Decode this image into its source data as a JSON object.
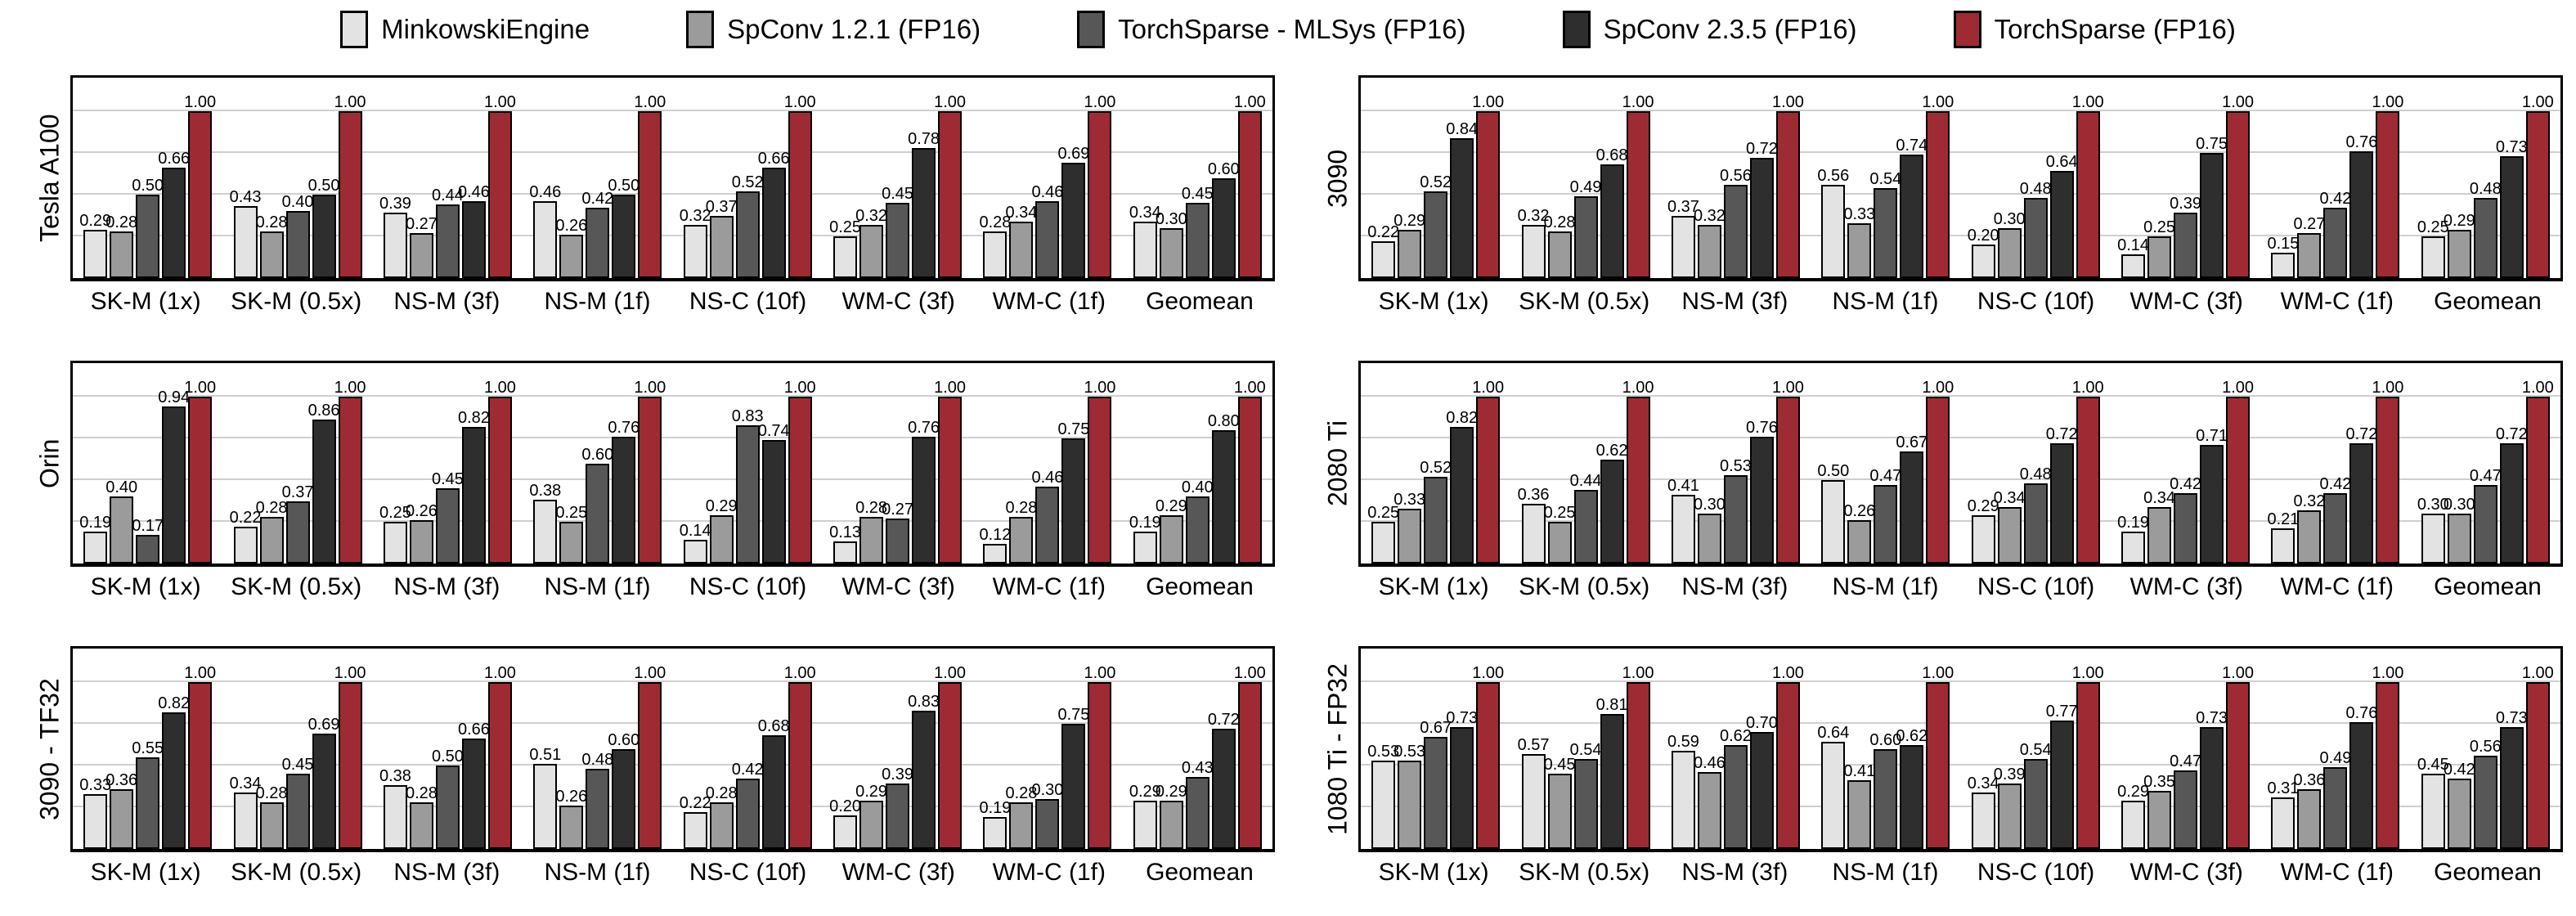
{
  "legend": {
    "items": [
      {
        "label": "MinkowskiEngine",
        "color": "#e3e3e3"
      },
      {
        "label": "SpConv 1.2.1 (FP16)",
        "color": "#9b9b9b"
      },
      {
        "label": "TorchSparse - MLSys (FP16)",
        "color": "#575757"
      },
      {
        "label": "SpConv 2.3.5 (FP16)",
        "color": "#2e2e2e"
      },
      {
        "label": "TorchSparse (FP16)",
        "color": "#9e2b33"
      }
    ]
  },
  "axis": {
    "ylim": [
      0,
      1.2
    ],
    "gridlines": [
      0.25,
      0.5,
      0.75,
      1.0
    ],
    "grid_color": "#cfcfcf",
    "bar_border_color": "#000000",
    "value_label_format": "2-decimals"
  },
  "chart_data": [
    {
      "type": "bar",
      "title": "Tesla A100",
      "categories": [
        "SK-M (1x)",
        "SK-M (0.5x)",
        "NS-M (3f)",
        "NS-M (1f)",
        "NS-C (10f)",
        "WM-C (3f)",
        "WM-C (1f)",
        "Geomean"
      ],
      "series": [
        {
          "name": "MinkowskiEngine",
          "values": [
            0.29,
            0.43,
            0.39,
            0.46,
            0.32,
            0.25,
            0.28,
            0.34
          ]
        },
        {
          "name": "SpConv 1.2.1 (FP16)",
          "values": [
            0.28,
            0.28,
            0.27,
            0.26,
            0.37,
            0.32,
            0.34,
            0.3
          ]
        },
        {
          "name": "TorchSparse - MLSys (FP16)",
          "values": [
            0.5,
            0.4,
            0.44,
            0.42,
            0.52,
            0.45,
            0.46,
            0.45
          ]
        },
        {
          "name": "SpConv 2.3.5 (FP16)",
          "values": [
            0.66,
            0.5,
            0.46,
            0.5,
            0.66,
            0.78,
            0.69,
            0.6
          ]
        },
        {
          "name": "TorchSparse (FP16)",
          "values": [
            1.0,
            1.0,
            1.0,
            1.0,
            1.0,
            1.0,
            1.0,
            1.0
          ]
        }
      ],
      "ylim": [
        0,
        1.2
      ],
      "grid": "horizontal",
      "legend_position": "top-shared"
    },
    {
      "type": "bar",
      "title": "3090",
      "categories": [
        "SK-M (1x)",
        "SK-M (0.5x)",
        "NS-M (3f)",
        "NS-M (1f)",
        "NS-C (10f)",
        "WM-C (3f)",
        "WM-C (1f)",
        "Geomean"
      ],
      "series": [
        {
          "name": "MinkowskiEngine",
          "values": [
            0.22,
            0.32,
            0.37,
            0.56,
            0.2,
            0.14,
            0.15,
            0.25
          ]
        },
        {
          "name": "SpConv 1.2.1 (FP16)",
          "values": [
            0.29,
            0.28,
            0.32,
            0.33,
            0.3,
            0.25,
            0.27,
            0.29
          ]
        },
        {
          "name": "TorchSparse - MLSys (FP16)",
          "values": [
            0.52,
            0.49,
            0.56,
            0.54,
            0.48,
            0.39,
            0.42,
            0.48
          ]
        },
        {
          "name": "SpConv 2.3.5 (FP16)",
          "values": [
            0.84,
            0.68,
            0.72,
            0.74,
            0.64,
            0.75,
            0.76,
            0.73
          ]
        },
        {
          "name": "TorchSparse (FP16)",
          "values": [
            1.0,
            1.0,
            1.0,
            1.0,
            1.0,
            1.0,
            1.0,
            1.0
          ]
        }
      ],
      "ylim": [
        0,
        1.2
      ],
      "grid": "horizontal",
      "legend_position": "top-shared"
    },
    {
      "type": "bar",
      "title": "Orin",
      "categories": [
        "SK-M (1x)",
        "SK-M (0.5x)",
        "NS-M (3f)",
        "NS-M (1f)",
        "NS-C (10f)",
        "WM-C (3f)",
        "WM-C (1f)",
        "Geomean"
      ],
      "series": [
        {
          "name": "MinkowskiEngine",
          "values": [
            0.19,
            0.22,
            0.25,
            0.38,
            0.14,
            0.13,
            0.12,
            0.19
          ]
        },
        {
          "name": "SpConv 1.2.1 (FP16)",
          "values": [
            0.4,
            0.28,
            0.26,
            0.25,
            0.29,
            0.28,
            0.28,
            0.29
          ]
        },
        {
          "name": "TorchSparse - MLSys (FP16)",
          "values": [
            0.17,
            0.37,
            0.45,
            0.6,
            0.83,
            0.27,
            0.46,
            0.4
          ]
        },
        {
          "name": "SpConv 2.3.5 (FP16)",
          "values": [
            0.94,
            0.86,
            0.82,
            0.76,
            0.74,
            0.76,
            0.75,
            0.8
          ]
        },
        {
          "name": "TorchSparse (FP16)",
          "values": [
            1.0,
            1.0,
            1.0,
            1.0,
            1.0,
            1.0,
            1.0,
            1.0
          ]
        }
      ],
      "ylim": [
        0,
        1.2
      ],
      "grid": "horizontal",
      "legend_position": "top-shared"
    },
    {
      "type": "bar",
      "title": "2080 Ti",
      "categories": [
        "SK-M (1x)",
        "SK-M (0.5x)",
        "NS-M (3f)",
        "NS-M (1f)",
        "NS-C (10f)",
        "WM-C (3f)",
        "WM-C (1f)",
        "Geomean"
      ],
      "series": [
        {
          "name": "MinkowskiEngine",
          "values": [
            0.25,
            0.36,
            0.41,
            0.5,
            0.29,
            0.19,
            0.21,
            0.3
          ]
        },
        {
          "name": "SpConv 1.2.1 (FP16)",
          "values": [
            0.33,
            0.25,
            0.3,
            0.26,
            0.34,
            0.34,
            0.32,
            0.3
          ]
        },
        {
          "name": "TorchSparse - MLSys (FP16)",
          "values": [
            0.52,
            0.44,
            0.53,
            0.47,
            0.48,
            0.42,
            0.42,
            0.47
          ]
        },
        {
          "name": "SpConv 2.3.5 (FP16)",
          "values": [
            0.82,
            0.62,
            0.76,
            0.67,
            0.72,
            0.71,
            0.72,
            0.72
          ]
        },
        {
          "name": "TorchSparse (FP16)",
          "values": [
            1.0,
            1.0,
            1.0,
            1.0,
            1.0,
            1.0,
            1.0,
            1.0
          ]
        }
      ],
      "ylim": [
        0,
        1.2
      ],
      "grid": "horizontal",
      "legend_position": "top-shared"
    },
    {
      "type": "bar",
      "title": "3090 - TF32",
      "categories": [
        "SK-M (1x)",
        "SK-M (0.5x)",
        "NS-M (3f)",
        "NS-M (1f)",
        "NS-C (10f)",
        "WM-C (3f)",
        "WM-C (1f)",
        "Geomean"
      ],
      "series": [
        {
          "name": "MinkowskiEngine",
          "values": [
            0.33,
            0.34,
            0.38,
            0.51,
            0.22,
            0.2,
            0.19,
            0.29
          ]
        },
        {
          "name": "SpConv 1.2.1 (FP16)",
          "values": [
            0.36,
            0.28,
            0.28,
            0.26,
            0.28,
            0.29,
            0.28,
            0.29
          ]
        },
        {
          "name": "TorchSparse - MLSys (FP16)",
          "values": [
            0.55,
            0.45,
            0.5,
            0.48,
            0.42,
            0.39,
            0.3,
            0.43
          ]
        },
        {
          "name": "SpConv 2.3.5 (FP16)",
          "values": [
            0.82,
            0.69,
            0.66,
            0.6,
            0.68,
            0.83,
            0.75,
            0.72
          ]
        },
        {
          "name": "TorchSparse (FP16)",
          "values": [
            1.0,
            1.0,
            1.0,
            1.0,
            1.0,
            1.0,
            1.0,
            1.0
          ]
        }
      ],
      "ylim": [
        0,
        1.2
      ],
      "grid": "horizontal",
      "legend_position": "top-shared"
    },
    {
      "type": "bar",
      "title": "1080 Ti - FP32",
      "categories": [
        "SK-M (1x)",
        "SK-M (0.5x)",
        "NS-M (3f)",
        "NS-M (1f)",
        "NS-C (10f)",
        "WM-C (3f)",
        "WM-C (1f)",
        "Geomean"
      ],
      "series": [
        {
          "name": "MinkowskiEngine",
          "values": [
            0.53,
            0.57,
            0.59,
            0.64,
            0.34,
            0.29,
            0.31,
            0.45
          ]
        },
        {
          "name": "SpConv 1.2.1 (FP16)",
          "values": [
            0.53,
            0.45,
            0.46,
            0.41,
            0.39,
            0.35,
            0.36,
            0.42
          ]
        },
        {
          "name": "TorchSparse - MLSys (FP16)",
          "values": [
            0.67,
            0.54,
            0.62,
            0.6,
            0.54,
            0.47,
            0.49,
            0.56
          ]
        },
        {
          "name": "SpConv 2.3.5 (FP16)",
          "values": [
            0.73,
            0.81,
            0.7,
            0.62,
            0.77,
            0.73,
            0.76,
            0.73
          ]
        },
        {
          "name": "TorchSparse (FP16)",
          "values": [
            1.0,
            1.0,
            1.0,
            1.0,
            1.0,
            1.0,
            1.0,
            1.0
          ]
        }
      ],
      "ylim": [
        0,
        1.2
      ],
      "grid": "horizontal",
      "legend_position": "top-shared"
    }
  ]
}
